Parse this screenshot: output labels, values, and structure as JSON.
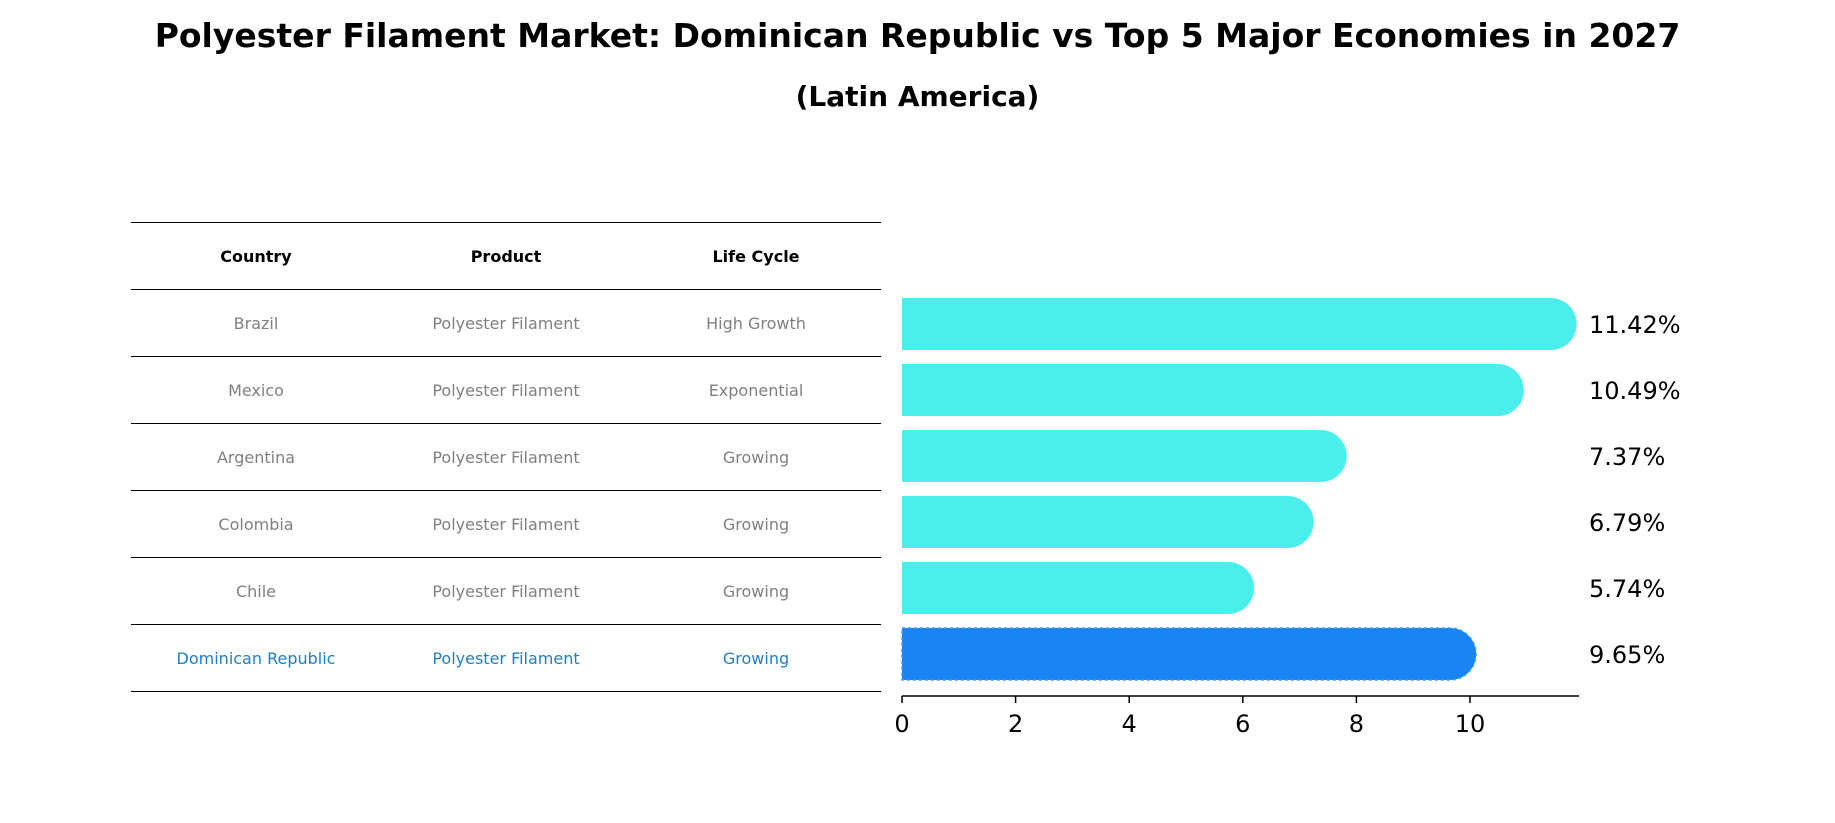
{
  "title": "Polyester Filament Market: Dominican Republic vs Top 5 Major Economies in 2027",
  "subtitle": "(Latin America)",
  "table": {
    "headers": [
      "Country",
      "Product",
      "Life Cycle"
    ],
    "rows": [
      {
        "country": "Brazil",
        "product": "Polyester Filament",
        "life_cycle": "High Growth"
      },
      {
        "country": "Mexico",
        "product": "Polyester Filament",
        "life_cycle": "Exponential"
      },
      {
        "country": "Argentina",
        "product": "Polyester Filament",
        "life_cycle": "Growing"
      },
      {
        "country": "Colombia",
        "product": "Polyester Filament",
        "life_cycle": "Growing"
      },
      {
        "country": "Chile",
        "product": "Polyester Filament",
        "life_cycle": "Growing"
      },
      {
        "country": "Dominican Republic",
        "product": "Polyester Filament",
        "life_cycle": "Growing"
      }
    ]
  },
  "colors": {
    "bar": "#4aeeea",
    "highlight_bar": "#1a84f4",
    "highlight_text": "#1f7ec8"
  },
  "chart_data": {
    "type": "bar",
    "orientation": "horizontal",
    "categories": [
      "Brazil",
      "Mexico",
      "Argentina",
      "Colombia",
      "Chile",
      "Dominican Republic"
    ],
    "values": [
      11.42,
      10.49,
      7.37,
      6.79,
      5.74,
      9.65
    ],
    "value_labels": [
      "11.42%",
      "10.49%",
      "7.37%",
      "6.79%",
      "5.74%",
      "9.65%"
    ],
    "highlight_index": 5,
    "xlim": [
      0,
      12
    ],
    "xticks": [
      0,
      2,
      4,
      6,
      8,
      10
    ],
    "grid": false,
    "legend": "none"
  }
}
